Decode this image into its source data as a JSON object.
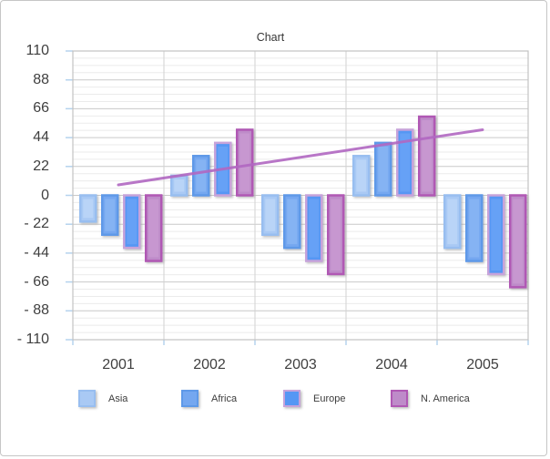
{
  "window": {
    "background": "#ffffff",
    "border_color": "#c6c6c6"
  },
  "chart_data": {
    "type": "bar",
    "title": "Chart",
    "categories": [
      "2001",
      "2002",
      "2003",
      "2004",
      "2005"
    ],
    "series": [
      {
        "name": "Asia",
        "values": [
          -20,
          15,
          -30,
          30,
          -40
        ],
        "fill": "#A9C9F4",
        "light": "#C6DCFA",
        "border": "#98BEF0"
      },
      {
        "name": "Africa",
        "values": [
          -30,
          30,
          -40,
          40,
          -50
        ],
        "fill": "#74A7F0",
        "light": "#93BDF5",
        "border": "#5E99E8"
      },
      {
        "name": "Europe",
        "values": [
          -40,
          40,
          -50,
          50,
          -60
        ],
        "fill": "#5697F4",
        "light": "#74AAF7",
        "border": "#C7A3DA"
      },
      {
        "name": "N. America",
        "values": [
          -50,
          50,
          -60,
          60,
          -70
        ],
        "fill": "#BE8BC9",
        "light": "#CEA3D6",
        "border": "#B058B4"
      }
    ],
    "trendline": {
      "color": "#B168C2",
      "start_value": 8,
      "end_value": 50
    },
    "y_axis": {
      "min": -110,
      "max": 110,
      "major_step": 22,
      "minor_divisions": 4,
      "tick_labels": [
        "110",
        "88",
        "66",
        "44",
        "22",
        "0",
        "- 22",
        "- 44",
        "- 66",
        "- 88",
        "- 110"
      ]
    },
    "x_axis": {
      "labels": [
        "2001",
        "2002",
        "2003",
        "2004",
        "2005"
      ]
    },
    "legend": {
      "position": "bottom",
      "entries": [
        "Asia",
        "Africa",
        "Europe",
        "N. America"
      ]
    },
    "grid": {
      "major_color": "#c9c9c9",
      "minor_color": "#ebebeb",
      "vertical_color": "#d2d2d2",
      "border_color": "#c3c3c3",
      "tick_color": "#b5d3ee"
    }
  }
}
